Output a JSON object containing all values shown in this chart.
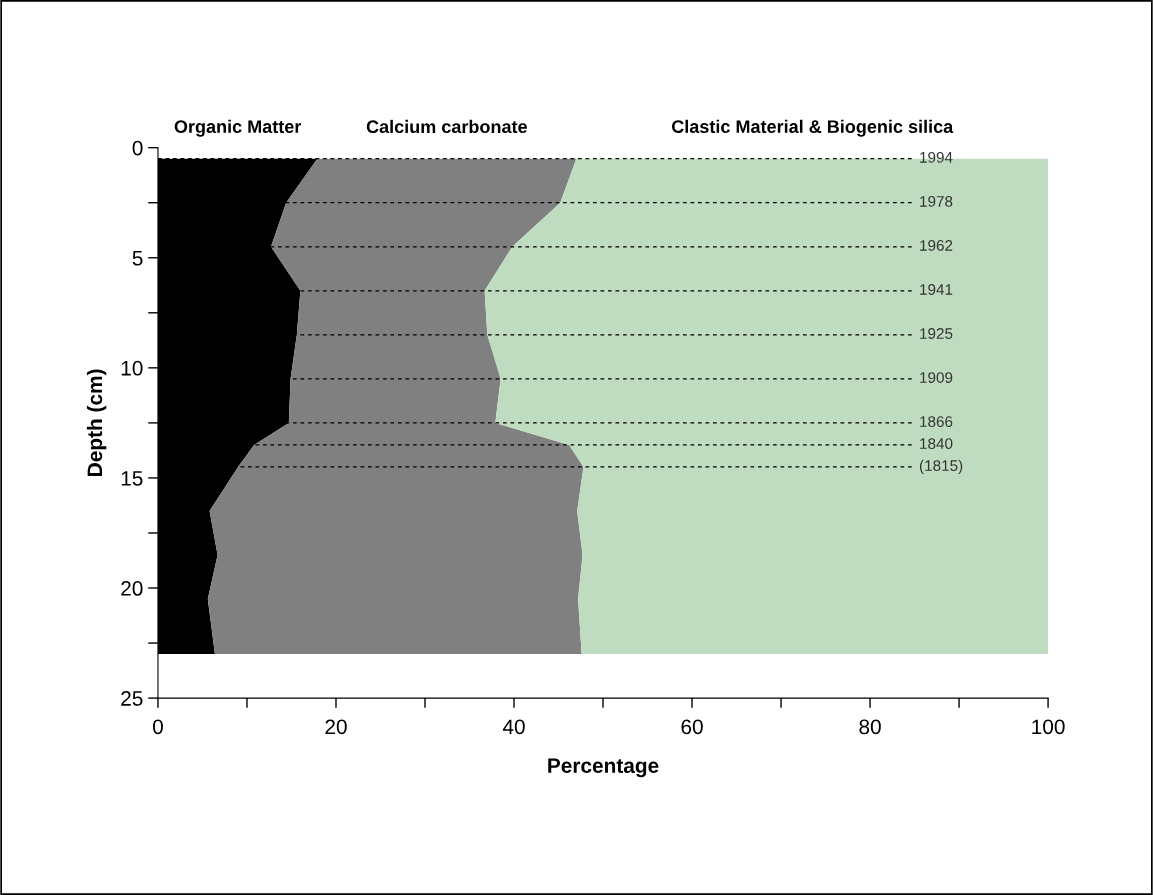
{
  "chart_data": {
    "type": "area",
    "orientation": "horizontal",
    "stacked": true,
    "xlabel": "Percentage",
    "ylabel": "Depth (cm)",
    "x": [
      0.5,
      2.5,
      4.5,
      6.5,
      8.5,
      10.5,
      12.5,
      13.5,
      14.5,
      16.5,
      18.5,
      20.5,
      23
    ],
    "series": [
      {
        "name": "Organic Matter",
        "color": "#000000",
        "values": [
          17.9,
          14.4,
          12.7,
          16.0,
          15.6,
          14.9,
          14.7,
          10.8,
          9.0,
          5.8,
          6.7,
          5.6,
          6.4
        ]
      },
      {
        "name": "Calcium carbonate",
        "color": "#808080",
        "values": [
          29.1,
          30.8,
          27.1,
          20.7,
          21.4,
          23.6,
          23.2,
          35.4,
          38.8,
          41.3,
          41.0,
          41.6,
          41.2
        ]
      },
      {
        "name": "Clastic Material & Biogenic silica",
        "color": "#c0dcc0",
        "values": [
          53.0,
          54.8,
          60.2,
          63.3,
          63.0,
          61.5,
          62.1,
          53.8,
          52.2,
          52.9,
          52.3,
          52.8,
          52.4
        ]
      }
    ],
    "xlim": [
      0,
      100
    ],
    "xticks": [
      0,
      {
        "value": 10,
        "label": null
      },
      20,
      {
        "value": 30,
        "label": null
      },
      40,
      {
        "value": 50,
        "label": null
      },
      60,
      {
        "value": 70,
        "label": null
      },
      80,
      {
        "value": 90,
        "label": null
      },
      100
    ],
    "ylim": [
      25,
      0
    ],
    "yticks": [
      0,
      {
        "value": 2.5,
        "label": null
      },
      5,
      {
        "value": 7.5,
        "label": null
      },
      10,
      {
        "value": 12.5,
        "label": null
      },
      15,
      {
        "value": 17.5,
        "label": null
      },
      20,
      {
        "value": 22.5,
        "label": null
      },
      25
    ],
    "ref_lines": [
      {
        "axis": "y",
        "value": 0.5,
        "color": "#000000",
        "line_style": "dashed"
      },
      {
        "axis": "y",
        "value": 2.5,
        "color": "#000000",
        "line_style": "dashed"
      },
      {
        "axis": "y",
        "value": 4.5,
        "color": "#000000",
        "line_style": "dashed"
      },
      {
        "axis": "y",
        "value": 6.5,
        "color": "#000000",
        "line_style": "dashed"
      },
      {
        "axis": "y",
        "value": 8.5,
        "color": "#000000",
        "line_style": "dashed"
      },
      {
        "axis": "y",
        "value": 10.5,
        "color": "#000000",
        "line_style": "dashed"
      },
      {
        "axis": "y",
        "value": 12.5,
        "color": "#000000",
        "line_style": "dashed"
      },
      {
        "axis": "y",
        "value": 13.5,
        "color": "#000000",
        "line_style": "dashed"
      },
      {
        "axis": "y",
        "value": 14.5,
        "color": "#000000",
        "line_style": "dashed"
      }
    ],
    "annotations": [
      "1994",
      "1978",
      "1962",
      "1941",
      "1925",
      "1909",
      "1866",
      "1840",
      "(1815)"
    ],
    "grid": false,
    "legend": false
  }
}
